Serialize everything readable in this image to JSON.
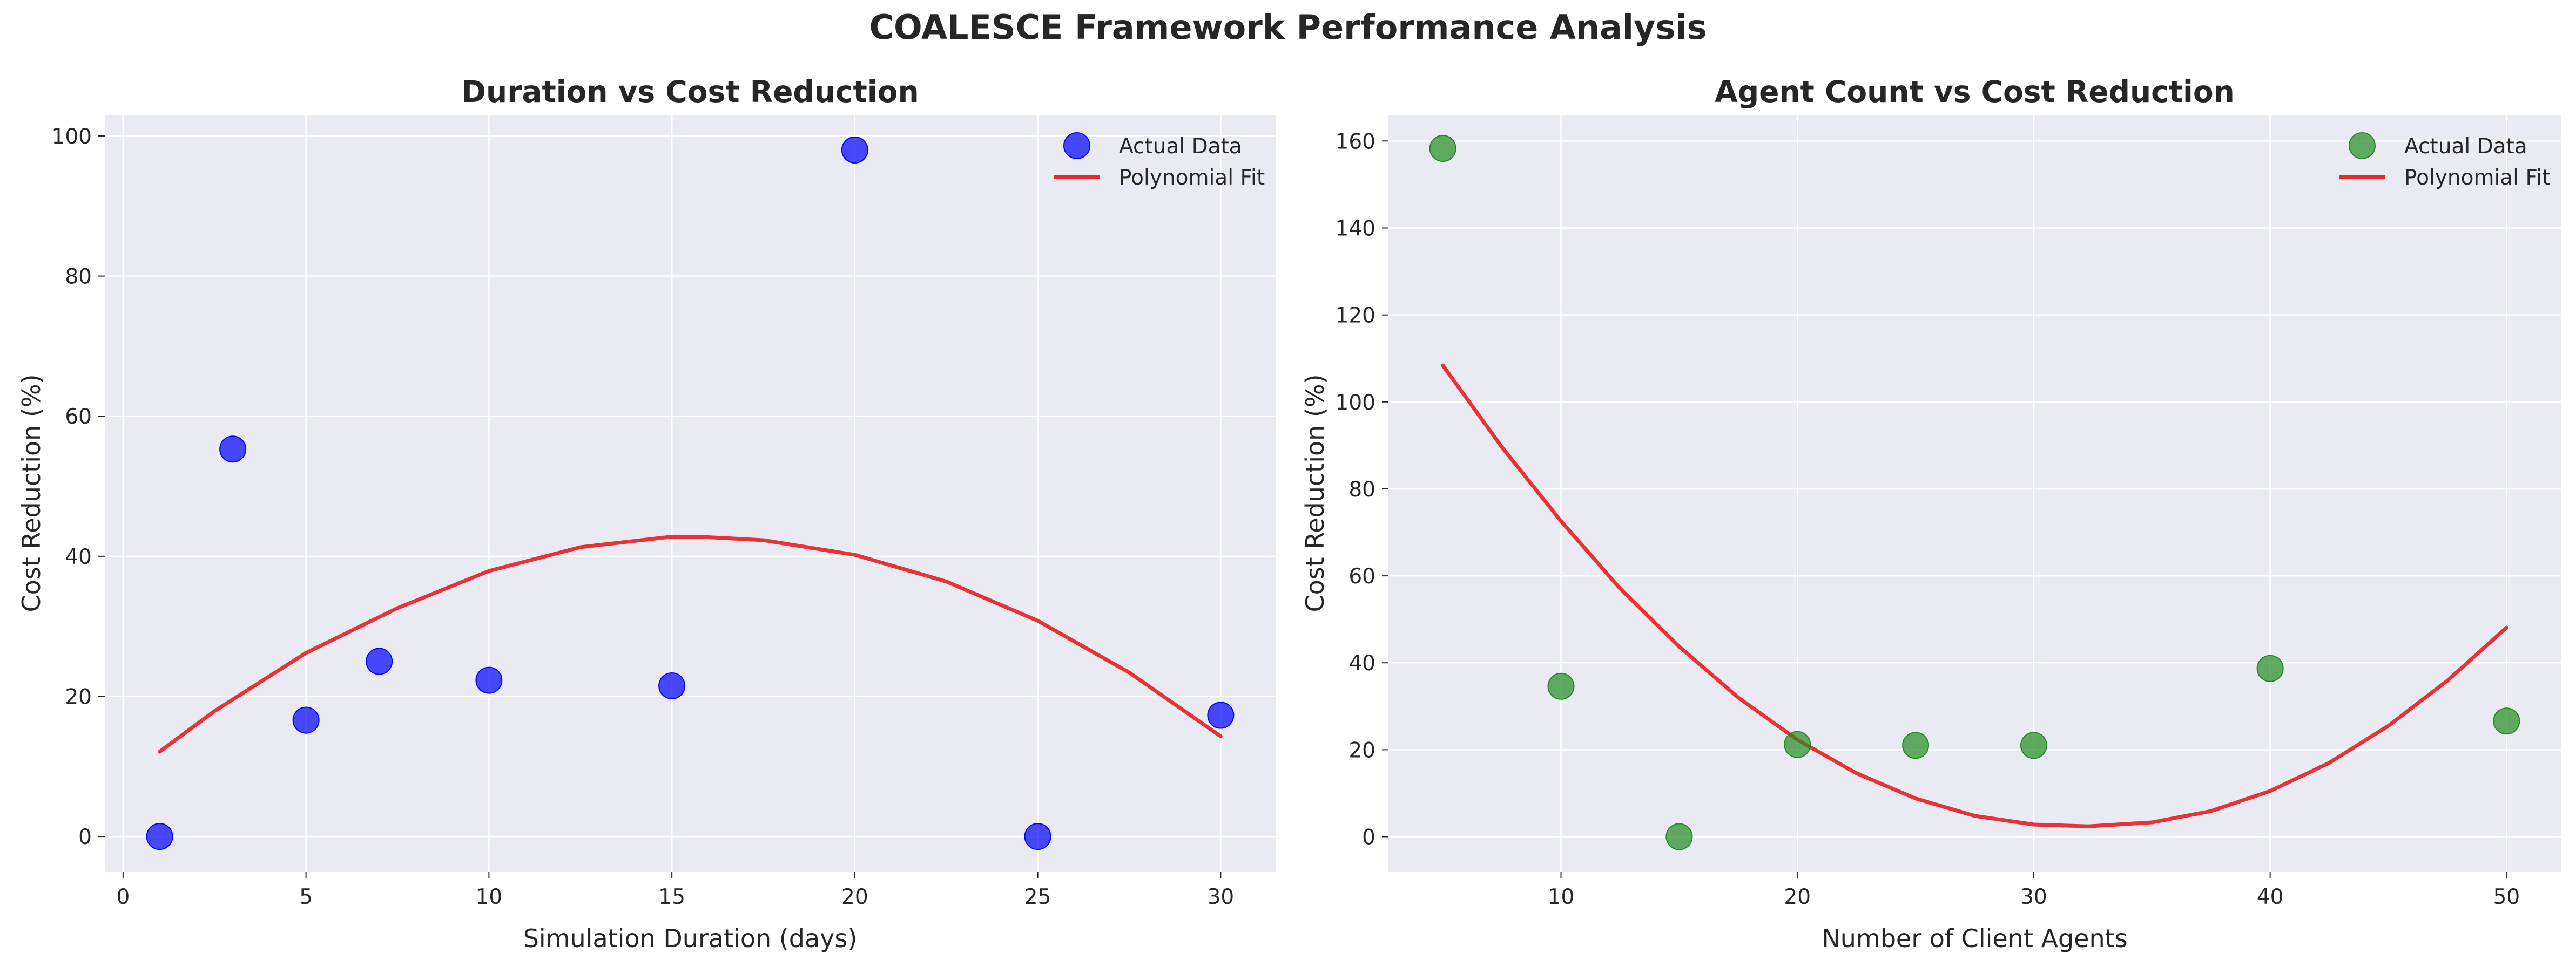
{
  "suptitle": "COALESCE Framework Performance Analysis",
  "chart_data": [
    {
      "type": "scatter",
      "title": "Duration vs Cost Reduction",
      "xlabel": "Simulation Duration (days)",
      "ylabel": "Cost Reduction (%)",
      "xlim": [
        -0.5,
        31.5
      ],
      "ylim": [
        -5,
        103
      ],
      "xticks": [
        0,
        5,
        10,
        15,
        20,
        25,
        30
      ],
      "yticks": [
        0,
        20,
        40,
        60,
        80,
        100
      ],
      "grid": true,
      "legend_position": "top-right",
      "series": [
        {
          "name": "Actual Data",
          "kind": "scatter",
          "color": "#0000ff",
          "x": [
            1,
            3,
            5,
            7,
            10,
            15,
            20,
            25,
            30
          ],
          "y": [
            0,
            55.3,
            16.6,
            25.0,
            22.3,
            21.5,
            98.0,
            0,
            17.3
          ]
        },
        {
          "name": "Polynomial Fit",
          "kind": "line",
          "color": "#e8282b",
          "x": [
            1,
            2.5,
            5,
            7.5,
            10,
            12.5,
            15,
            15.7,
            17.5,
            20,
            22.5,
            25,
            27.5,
            30
          ],
          "y": [
            12.1,
            17.9,
            26.2,
            32.6,
            37.9,
            41.3,
            42.8,
            42.8,
            42.3,
            40.2,
            36.4,
            30.8,
            23.4,
            14.3
          ]
        }
      ]
    },
    {
      "type": "scatter",
      "title": "Agent Count vs Cost Reduction",
      "xlabel": "Number of Client Agents",
      "ylabel": "Cost Reduction (%)",
      "xlim": [
        2.7,
        52.3
      ],
      "ylim": [
        -8,
        166
      ],
      "xticks": [
        10,
        20,
        30,
        40,
        50
      ],
      "yticks": [
        0,
        20,
        40,
        60,
        80,
        100,
        120,
        140,
        160
      ],
      "grid": true,
      "legend_position": "top-right",
      "series": [
        {
          "name": "Actual Data",
          "kind": "scatter",
          "color": "#228b22",
          "x": [
            5,
            10,
            15,
            20,
            25,
            30,
            40,
            50
          ],
          "y": [
            158.3,
            34.6,
            0,
            21.2,
            21.0,
            21.0,
            38.7,
            26.6
          ]
        },
        {
          "name": "Polynomial Fit",
          "kind": "line",
          "color": "#e8282b",
          "x": [
            5,
            7.5,
            10,
            12.5,
            15,
            17.5,
            20,
            22.5,
            25,
            27.5,
            30,
            32.3,
            35,
            37.5,
            40,
            42.5,
            45,
            47.5,
            50
          ],
          "y": [
            108.4,
            89.6,
            72.6,
            57.1,
            43.7,
            32.0,
            22.3,
            14.6,
            8.8,
            4.8,
            2.8,
            2.4,
            3.3,
            5.9,
            10.5,
            17.0,
            25.5,
            35.9,
            48.1
          ]
        }
      ]
    }
  ]
}
